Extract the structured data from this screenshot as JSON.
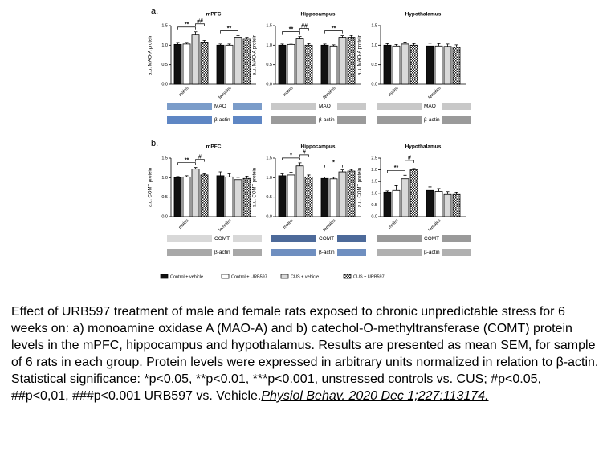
{
  "panels": [
    "a.",
    "b."
  ],
  "legend": [
    {
      "name": "Control + vehicle",
      "color": "#111111",
      "pattern": "solid"
    },
    {
      "name": "Control + URB597",
      "color": "#ffffff",
      "pattern": "solid"
    },
    {
      "name": "CUS + vehicle",
      "color": "#d9d9d9",
      "pattern": "solid"
    },
    {
      "name": "CUS + URB597",
      "color": "#222222",
      "pattern": "checker"
    }
  ],
  "chart_data": [
    {
      "type": "bar",
      "title": "mPFC",
      "y_label": "a.u. MAO-A protein",
      "categories": [
        "males",
        "females"
      ],
      "ylim": [
        0,
        1.5
      ],
      "yticks": [
        {
          "value": 0,
          "label": "0.0"
        },
        0.5,
        {
          "value": 1,
          "label": "1.0"
        },
        1.5
      ],
      "series": [
        {
          "values": [
            1.02,
            1.0
          ],
          "errors": [
            0.05,
            0.03
          ]
        },
        {
          "values": [
            1.03,
            1.0
          ],
          "errors": [
            0.04,
            0.03
          ]
        },
        {
          "values": [
            1.28,
            1.2
          ],
          "errors": [
            0.06,
            0.04
          ]
        },
        {
          "values": [
            1.08,
            1.17
          ],
          "errors": [
            0.04,
            0.03
          ]
        }
      ],
      "annotations": [
        "**",
        "##",
        "**"
      ],
      "blots": [
        "MAO",
        "β-actin"
      ]
    },
    {
      "type": "bar",
      "title": "Hippocampus",
      "y_label": "a.u. MAO-A protein",
      "categories": [
        "males",
        "females"
      ],
      "ylim": [
        0,
        1.5
      ],
      "yticks": [
        {
          "value": 0,
          "label": "0.0"
        },
        0.5,
        {
          "value": 1,
          "label": "1.0"
        },
        1.5
      ],
      "series": [
        {
          "values": [
            1.0,
            1.0
          ],
          "errors": [
            0.03,
            0.03
          ]
        },
        {
          "values": [
            1.02,
            0.98
          ],
          "errors": [
            0.03,
            0.03
          ]
        },
        {
          "values": [
            1.18,
            1.2
          ],
          "errors": [
            0.04,
            0.04
          ]
        },
        {
          "values": [
            1.0,
            1.2
          ],
          "errors": [
            0.04,
            0.05
          ]
        }
      ],
      "annotations": [
        "**",
        "##",
        "**"
      ],
      "blots": [
        "MAO",
        "β-actin"
      ]
    },
    {
      "type": "bar",
      "title": "Hypothalamus",
      "y_label": "a.u. MAO-A protein",
      "categories": [
        "males",
        "females"
      ],
      "ylim": [
        0,
        1.5
      ],
      "yticks": [
        {
          "value": 0,
          "label": "0.0"
        },
        0.5,
        {
          "value": 1,
          "label": "1.0"
        },
        1.5
      ],
      "series": [
        {
          "values": [
            1.0,
            0.98
          ],
          "errors": [
            0.04,
            0.07
          ]
        },
        {
          "values": [
            0.98,
            0.98
          ],
          "errors": [
            0.04,
            0.06
          ]
        },
        {
          "values": [
            1.03,
            0.97
          ],
          "errors": [
            0.05,
            0.06
          ]
        },
        {
          "values": [
            1.0,
            0.95
          ],
          "errors": [
            0.04,
            0.06
          ]
        }
      ],
      "annotations": [],
      "blots": [
        "MAO",
        "β-actin"
      ]
    },
    {
      "type": "bar",
      "title": "mPFC",
      "y_label": "a.u. COMT protein",
      "categories": [
        "males",
        "females"
      ],
      "ylim": [
        0,
        1.5
      ],
      "yticks": [
        {
          "value": 0,
          "label": "0.0"
        },
        0.5,
        {
          "value": 1,
          "label": "1.0"
        },
        1.5
      ],
      "series": [
        {
          "values": [
            1.0,
            1.05
          ],
          "errors": [
            0.03,
            0.1
          ]
        },
        {
          "values": [
            1.02,
            1.02
          ],
          "errors": [
            0.03,
            0.08
          ]
        },
        {
          "values": [
            1.22,
            0.95
          ],
          "errors": [
            0.04,
            0.06
          ]
        },
        {
          "values": [
            1.07,
            0.98
          ],
          "errors": [
            0.03,
            0.06
          ]
        }
      ],
      "annotations": [
        "**",
        "#"
      ],
      "blots": [
        "COMT",
        "β-actin"
      ]
    },
    {
      "type": "bar",
      "title": "Hippocampus",
      "y_label": "a.u. COMT protein",
      "categories": [
        "males",
        "females"
      ],
      "ylim": [
        0,
        1.5
      ],
      "yticks": [
        {
          "value": 0,
          "label": "0.0"
        },
        0.5,
        {
          "value": 1,
          "label": "1.0"
        },
        1.5
      ],
      "series": [
        {
          "values": [
            1.05,
            0.98
          ],
          "errors": [
            0.05,
            0.04
          ]
        },
        {
          "values": [
            1.07,
            0.97
          ],
          "errors": [
            0.07,
            0.04
          ]
        },
        {
          "values": [
            1.3,
            1.15
          ],
          "errors": [
            0.08,
            0.05
          ]
        },
        {
          "values": [
            1.02,
            1.17
          ],
          "errors": [
            0.05,
            0.04
          ]
        }
      ],
      "annotations": [
        "*",
        "#",
        "*"
      ],
      "blots": [
        "COMT",
        "β-actin"
      ]
    },
    {
      "type": "bar",
      "title": "Hypothalamus",
      "y_label": "a.u. COMT protein",
      "categories": [
        "males",
        "females"
      ],
      "ylim": [
        0,
        2.5
      ],
      "yticks": [
        {
          "value": 0,
          "label": "0.0"
        },
        0.5,
        {
          "value": 1,
          "label": "1.0"
        },
        1.5,
        {
          "value": 2,
          "label": "2.0"
        },
        2.5
      ],
      "series": [
        {
          "values": [
            1.05,
            1.12
          ],
          "errors": [
            0.05,
            0.15
          ]
        },
        {
          "values": [
            1.12,
            1.08
          ],
          "errors": [
            0.2,
            0.12
          ]
        },
        {
          "values": [
            1.62,
            0.95
          ],
          "errors": [
            0.15,
            0.12
          ]
        },
        {
          "values": [
            2.0,
            0.95
          ],
          "errors": [
            0.06,
            0.1
          ]
        }
      ],
      "annotations": [
        "**",
        "#"
      ],
      "blots": [
        "COMT",
        "β-actin"
      ]
    }
  ],
  "caption": {
    "text": "Effect of URB597 treatment of male and female rats exposed to chronic unpredictable stress for 6 weeks on: a) monoamine oxidase A (MAO-A) and b) catechol-O-methyltransferase (COMT) protein levels in the mPFC, hippocampus and hypothalamus. Results are presented as mean SEM, for sample of 6 rats in each group. Protein levels were expressed in arbitrary units normalized in relation to β-actin. Statistical significance: *p<0.05, **p<0.01, ***p<0.001, unstressed controls vs. CUS; #p<0.05, ##p<0,01, ###p<0.001 URB597 vs. Vehicle.",
    "citation": "Physiol Behav. 2020 Dec 1;227:113174."
  }
}
